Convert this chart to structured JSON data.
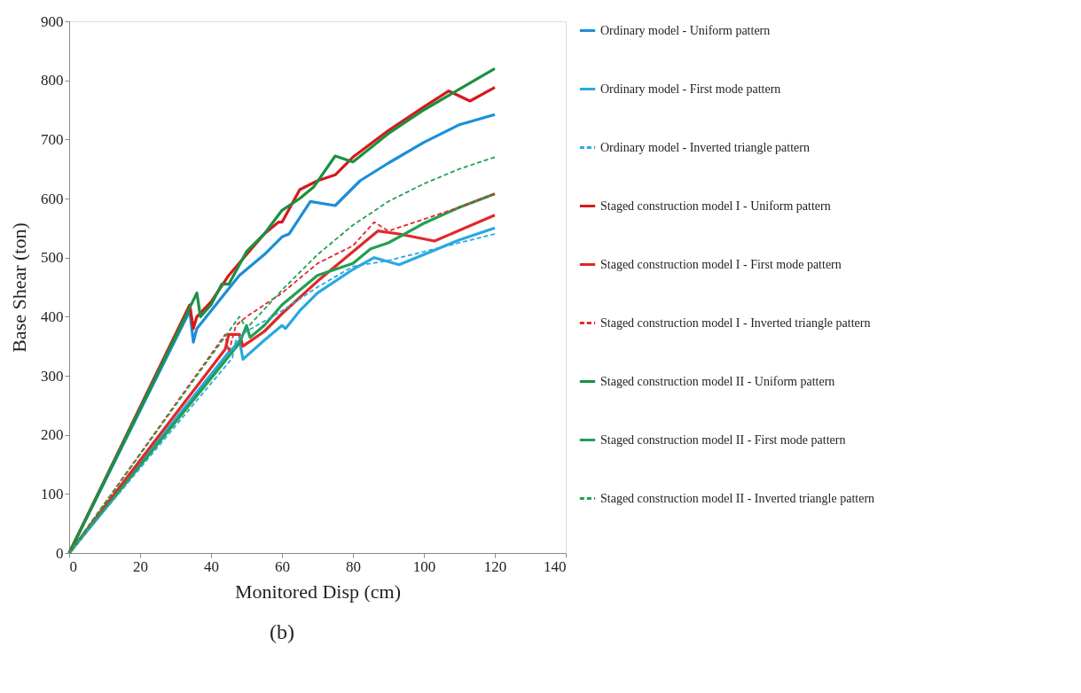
{
  "chart_data": {
    "type": "line",
    "xlabel": "Monitored Disp (cm)",
    "ylabel": "Base Shear (ton)",
    "xlim": [
      0,
      140
    ],
    "xticks": [
      0,
      20,
      40,
      60,
      80,
      100,
      120,
      140
    ],
    "ylim": [
      0,
      900
    ],
    "yticks": [
      0,
      100,
      200,
      300,
      400,
      500,
      600,
      700,
      800,
      900
    ],
    "grid": false,
    "legend": "right",
    "annotations": [
      "(b)"
    ],
    "series": [
      {
        "name": "Ordinary model - Uniform pattern",
        "color": "#1b8fd8",
        "line_style": "solid",
        "x": [
          0,
          34,
          35,
          36,
          40,
          48,
          55,
          60,
          62,
          68,
          75,
          82,
          90,
          100,
          110,
          120
        ],
        "values": [
          0,
          410,
          357,
          380,
          410,
          470,
          505,
          535,
          540,
          595,
          588,
          630,
          660,
          695,
          725,
          742
        ]
      },
      {
        "name": "Ordinary model - First mode pattern",
        "color": "#2aa8e0",
        "line_style": "solid",
        "x": [
          0,
          45,
          46,
          48,
          49,
          55,
          60,
          61,
          65,
          70,
          80,
          86,
          93,
          100,
          110,
          120
        ],
        "values": [
          0,
          340,
          345,
          360,
          328,
          360,
          385,
          380,
          410,
          440,
          480,
          500,
          488,
          505,
          530,
          550
        ]
      },
      {
        "name": "Ordinary model - Inverted triangle pattern",
        "color": "#2aa8e0",
        "line_style": "dashed",
        "x": [
          0,
          46,
          47,
          50,
          60,
          70,
          80,
          90,
          100,
          110,
          120
        ],
        "values": [
          0,
          330,
          360,
          375,
          410,
          450,
          485,
          495,
          510,
          525,
          540
        ]
      },
      {
        "name": "Staged construction model I - Uniform pattern",
        "color": "#d7191c",
        "line_style": "solid",
        "x": [
          0,
          34,
          35,
          36,
          40,
          45,
          50,
          55,
          59,
          60,
          65,
          70,
          75,
          80,
          90,
          100,
          107,
          113,
          120
        ],
        "values": [
          0,
          420,
          380,
          400,
          425,
          470,
          505,
          540,
          560,
          560,
          615,
          630,
          640,
          670,
          715,
          755,
          782,
          765,
          788
        ]
      },
      {
        "name": "Staged construction model I - First mode pattern",
        "color": "#e0282b",
        "line_style": "solid",
        "x": [
          0,
          44,
          45,
          48,
          49,
          55,
          60,
          70,
          80,
          87,
          93,
          103,
          120
        ],
        "values": [
          0,
          345,
          370,
          370,
          350,
          375,
          405,
          460,
          510,
          545,
          540,
          528,
          572
        ]
      },
      {
        "name": "Staged construction model I - Inverted triangle pattern",
        "color": "#e0282b",
        "line_style": "dashed",
        "x": [
          0,
          44,
          45,
          47,
          50,
          60,
          70,
          80,
          86,
          90,
          100,
          110,
          120
        ],
        "values": [
          0,
          370,
          340,
          385,
          400,
          440,
          490,
          520,
          560,
          545,
          565,
          585,
          608
        ]
      },
      {
        "name": "Staged construction model II - Uniform pattern",
        "color": "#1a9141",
        "line_style": "solid",
        "x": [
          0,
          36,
          37,
          40,
          43,
          45,
          50,
          55,
          60,
          65,
          69,
          75,
          80,
          90,
          100,
          110,
          120
        ],
        "values": [
          0,
          440,
          400,
          420,
          455,
          455,
          510,
          540,
          580,
          600,
          620,
          672,
          662,
          710,
          750,
          785,
          820
        ]
      },
      {
        "name": "Staged construction model II - First mode pattern",
        "color": "#22a052",
        "line_style": "solid",
        "x": [
          0,
          48,
          50,
          51,
          55,
          60,
          70,
          75,
          80,
          85,
          90,
          100,
          110,
          120
        ],
        "values": [
          0,
          355,
          385,
          365,
          385,
          420,
          470,
          480,
          490,
          515,
          525,
          558,
          585,
          608
        ]
      },
      {
        "name": "Staged construction model II -  Inverted triangle pattern",
        "color": "#22a052",
        "line_style": "dashed",
        "x": [
          0,
          48,
          50,
          60,
          70,
          80,
          90,
          100,
          110,
          120
        ],
        "values": [
          0,
          400,
          380,
          445,
          505,
          555,
          595,
          625,
          650,
          670
        ]
      }
    ]
  }
}
